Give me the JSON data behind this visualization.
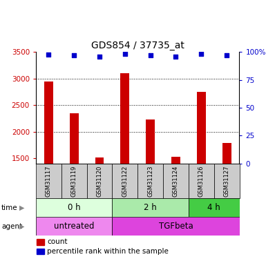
{
  "title": "GDS854 / 37735_at",
  "samples": [
    "GSM31117",
    "GSM31119",
    "GSM31120",
    "GSM31122",
    "GSM31123",
    "GSM31124",
    "GSM31126",
    "GSM31127"
  ],
  "counts": [
    2950,
    2350,
    1510,
    3100,
    2230,
    1520,
    2750,
    1780
  ],
  "percentile_ranks": [
    98,
    97,
    96,
    98.5,
    97,
    96,
    98.5,
    97
  ],
  "ylim_left": [
    1400,
    3500
  ],
  "ylim_right": [
    0,
    100
  ],
  "yticks_left": [
    1500,
    2000,
    2500,
    3000,
    3500
  ],
  "yticks_right": [
    0,
    25,
    50,
    75,
    100
  ],
  "bar_color": "#cc0000",
  "dot_color": "#0000cc",
  "bar_width": 0.35,
  "time_groups": [
    {
      "label": "0 h",
      "start": 0,
      "end": 3,
      "color": "#ddffdd"
    },
    {
      "label": "2 h",
      "start": 3,
      "end": 6,
      "color": "#aaeaaa"
    },
    {
      "label": "4 h",
      "start": 6,
      "end": 8,
      "color": "#44cc44"
    }
  ],
  "agent_groups": [
    {
      "label": "untreated",
      "start": 0,
      "end": 3,
      "color": "#ee88ee"
    },
    {
      "label": "TGFbeta",
      "start": 3,
      "end": 8,
      "color": "#dd44dd"
    }
  ],
  "left_tick_color": "#cc0000",
  "right_tick_color": "#0000cc",
  "background_color": "#ffffff",
  "plot_bg_color": "#ffffff",
  "label_bg_color": "#cccccc"
}
